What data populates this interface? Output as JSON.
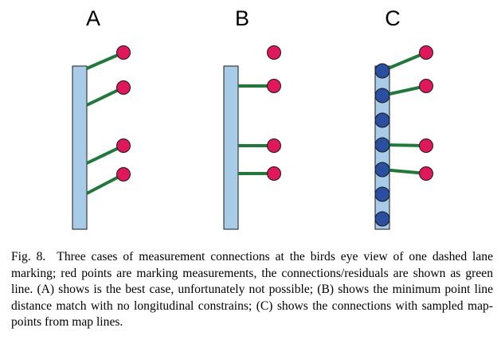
{
  "colors": {
    "lane_marking_fill": "#a8cce8",
    "lane_marking_stroke": "#1a1a1a",
    "measurement_point": "#e0175a",
    "map_point": "#2a4fa0",
    "connection": "#1f7a3a"
  },
  "panels": [
    {
      "label": "A",
      "measurement_points": 4,
      "map_points": 0,
      "connection_style": "diagonal-to-marking-end",
      "description": "best case"
    },
    {
      "label": "B",
      "measurement_points": 4,
      "map_points": 0,
      "connection_style": "perpendicular",
      "description": "minimum point line distance match"
    },
    {
      "label": "C",
      "measurement_points": 4,
      "map_points": 7,
      "connection_style": "to-nearest-map-point",
      "description": "connections with sampled map-points"
    }
  ],
  "caption": {
    "label": "Fig. 8.",
    "text": "Three cases of measurement connections at the birds eye view of one dashed lane marking; red points are marking measurements, the connections/residuals are shown as green line. (A) shows is the best case, unfortunately not possible; (B) shows the minimum point line distance match with no longitudinal constrains; (C) shows the connections with sampled map-points from map lines."
  }
}
